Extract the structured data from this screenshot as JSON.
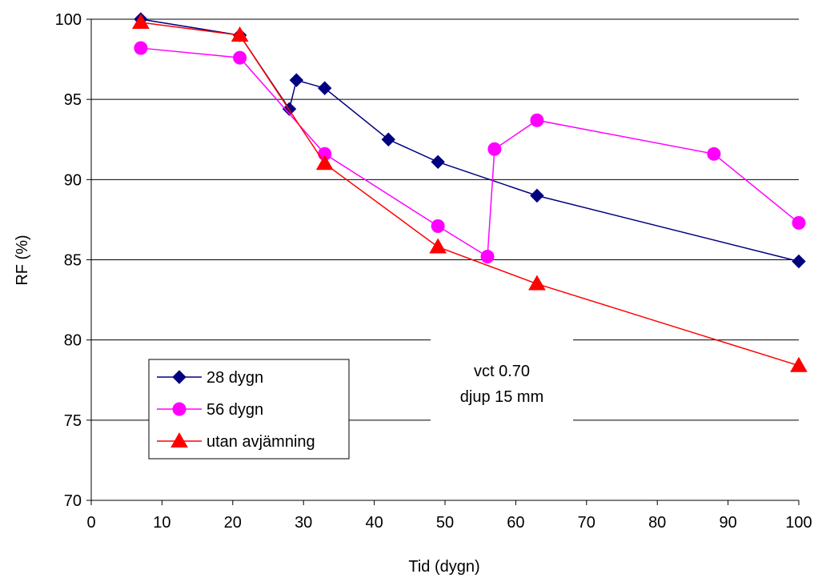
{
  "chart_data": {
    "type": "line",
    "title": "",
    "xlabel": "Tid (dygn)",
    "ylabel": "RF (%)",
    "xlim": [
      0,
      100
    ],
    "ylim": [
      70,
      100
    ],
    "xticks": [
      "0",
      "10",
      "20",
      "30",
      "40",
      "50",
      "60",
      "70",
      "80",
      "90",
      "100"
    ],
    "yticks": [
      "70",
      "75",
      "80",
      "85",
      "90",
      "95",
      "100"
    ],
    "grid": "horizontal",
    "legend_position": "bottom-left",
    "series": [
      {
        "name": "28 dygn",
        "color": "#000080",
        "marker": "diamond",
        "x": [
          7,
          21,
          28,
          29,
          33,
          42,
          49,
          63,
          100
        ],
        "y": [
          100,
          99,
          94.4,
          96.2,
          95.7,
          92.5,
          91.1,
          89.0,
          84.9
        ]
      },
      {
        "name": "56 dygn",
        "color": "#FF00FF",
        "marker": "circle",
        "x": [
          7,
          21,
          33,
          49,
          56,
          57,
          63,
          88,
          100
        ],
        "y": [
          98.2,
          97.6,
          91.6,
          87.1,
          85.2,
          91.9,
          93.7,
          91.6,
          87.3
        ]
      },
      {
        "name": "utan avjämning",
        "color": "#FF0000",
        "marker": "triangle",
        "x": [
          7,
          21,
          33,
          49,
          63,
          100
        ],
        "y": [
          99.8,
          99.0,
          91.0,
          85.8,
          83.5,
          78.4
        ]
      }
    ],
    "annotation": {
      "line1": "vct 0.70",
      "line2": "djup 15 mm"
    }
  }
}
